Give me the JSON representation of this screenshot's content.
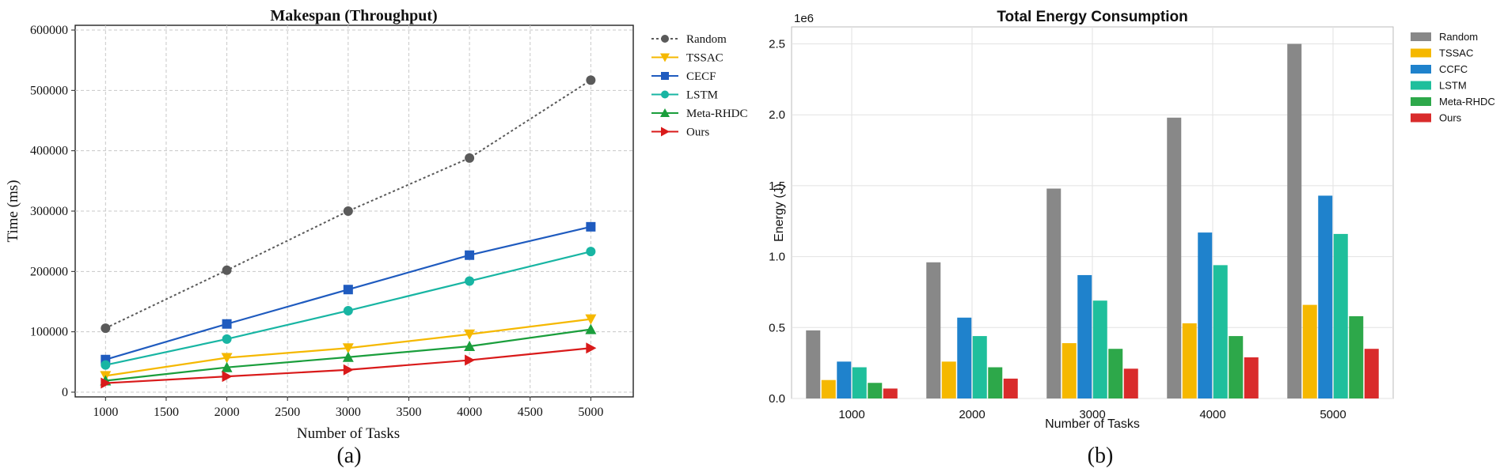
{
  "chart_data": [
    {
      "type": "line",
      "title": "Makespan (Throughput)",
      "xlabel": "Number of Tasks",
      "ylabel": "Time (ms)",
      "panel_label": "(a)",
      "x": [
        1000,
        2000,
        3000,
        4000,
        5000
      ],
      "xticks": [
        "1000",
        "1500",
        "2000",
        "2500",
        "3000",
        "3500",
        "4000",
        "4500",
        "5000"
      ],
      "xtick_values": [
        1000,
        1500,
        2000,
        2500,
        3000,
        3500,
        4000,
        4500,
        5000
      ],
      "yticks": [
        "0",
        "100000",
        "200000",
        "300000",
        "400000",
        "500000",
        "600000"
      ],
      "ytick_values": [
        0,
        100000,
        200000,
        300000,
        400000,
        500000,
        600000
      ],
      "xlim": [
        750,
        5350
      ],
      "ylim": [
        0,
        600000
      ],
      "grid": true,
      "legend_position": "outside-right",
      "series": [
        {
          "name": "Random",
          "color": "#5a5a5a",
          "marker": "circle",
          "dashed": true,
          "values": [
            106000,
            202000,
            300000,
            388000,
            517000
          ]
        },
        {
          "name": "TSSAC",
          "color": "#f5b800",
          "marker": "triangle-down",
          "dashed": false,
          "values": [
            27000,
            57000,
            73000,
            96000,
            121000
          ]
        },
        {
          "name": "CECF",
          "color": "#1f5bbf",
          "marker": "square",
          "dashed": false,
          "values": [
            54000,
            113000,
            170000,
            227000,
            274000
          ]
        },
        {
          "name": "LSTM",
          "color": "#18b5a3",
          "marker": "circle",
          "dashed": false,
          "values": [
            45000,
            88000,
            135000,
            184000,
            233000
          ]
        },
        {
          "name": "Meta-RHDC",
          "color": "#1a9e3c",
          "marker": "triangle-up",
          "dashed": false,
          "values": [
            19000,
            41000,
            58000,
            76000,
            104000
          ]
        },
        {
          "name": "Ours",
          "color": "#d91a1a",
          "marker": "triangle-right",
          "dashed": false,
          "values": [
            15000,
            26000,
            37000,
            53000,
            73000
          ]
        }
      ]
    },
    {
      "type": "bar",
      "title": "Total Energy Consumption",
      "xlabel": "Number of Tasks",
      "ylabel": "Energy (J)",
      "scale_label": "1e6",
      "panel_label": "(b)",
      "categories": [
        "1000",
        "2000",
        "3000",
        "4000",
        "5000"
      ],
      "yticks": [
        "0.0",
        "0.5",
        "1.0",
        "1.5",
        "2.0",
        "2.5"
      ],
      "ytick_values": [
        0.0,
        0.5,
        1.0,
        1.5,
        2.0,
        2.5
      ],
      "ylim": [
        0,
        2.62
      ],
      "grid": true,
      "legend_position": "outside-right",
      "series": [
        {
          "name": "Random",
          "color": "#888888",
          "values": [
            0.48,
            0.96,
            1.48,
            1.98,
            2.5
          ]
        },
        {
          "name": "TSSAC",
          "color": "#f5b800",
          "values": [
            0.13,
            0.26,
            0.39,
            0.53,
            0.66
          ]
        },
        {
          "name": "CCFC",
          "color": "#1f82cc",
          "values": [
            0.26,
            0.57,
            0.87,
            1.17,
            1.43
          ]
        },
        {
          "name": "LSTM",
          "color": "#1fbf9c",
          "values": [
            0.22,
            0.44,
            0.69,
            0.94,
            1.16
          ]
        },
        {
          "name": "Meta-RHDC",
          "color": "#2da84a",
          "values": [
            0.11,
            0.22,
            0.35,
            0.44,
            0.58
          ]
        },
        {
          "name": "Ours",
          "color": "#d92b2b",
          "values": [
            0.07,
            0.14,
            0.21,
            0.29,
            0.35
          ]
        }
      ]
    }
  ]
}
